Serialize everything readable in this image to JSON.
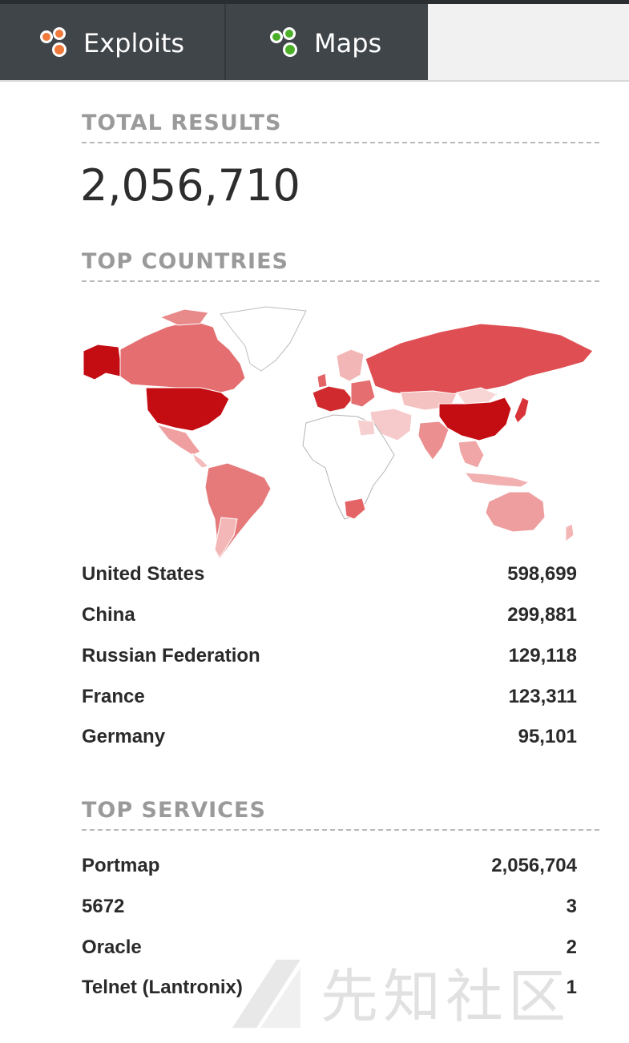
{
  "nav": {
    "tabs": [
      {
        "label": "Exploits",
        "icon": "orange-dots-icon"
      },
      {
        "label": "Maps",
        "icon": "green-dots-icon"
      }
    ]
  },
  "colors": {
    "accent_red": "#c40d13",
    "nav_bg": "#40454a"
  },
  "total": {
    "title": "TOTAL RESULTS",
    "value": "2,056,710"
  },
  "countries": {
    "title": "TOP COUNTRIES",
    "items": [
      {
        "name": "United States",
        "count": "598,699"
      },
      {
        "name": "China",
        "count": "299,881"
      },
      {
        "name": "Russian Federation",
        "count": "129,118"
      },
      {
        "name": "France",
        "count": "123,311"
      },
      {
        "name": "Germany",
        "count": "95,101"
      }
    ]
  },
  "services": {
    "title": "TOP SERVICES",
    "items": [
      {
        "name": "Portmap",
        "count": "2,056,704"
      },
      {
        "name": "5672",
        "count": "3"
      },
      {
        "name": "Oracle",
        "count": "2"
      },
      {
        "name": "Telnet (Lantronix)",
        "count": "1"
      }
    ]
  },
  "watermark": {
    "text": "先知社区"
  }
}
